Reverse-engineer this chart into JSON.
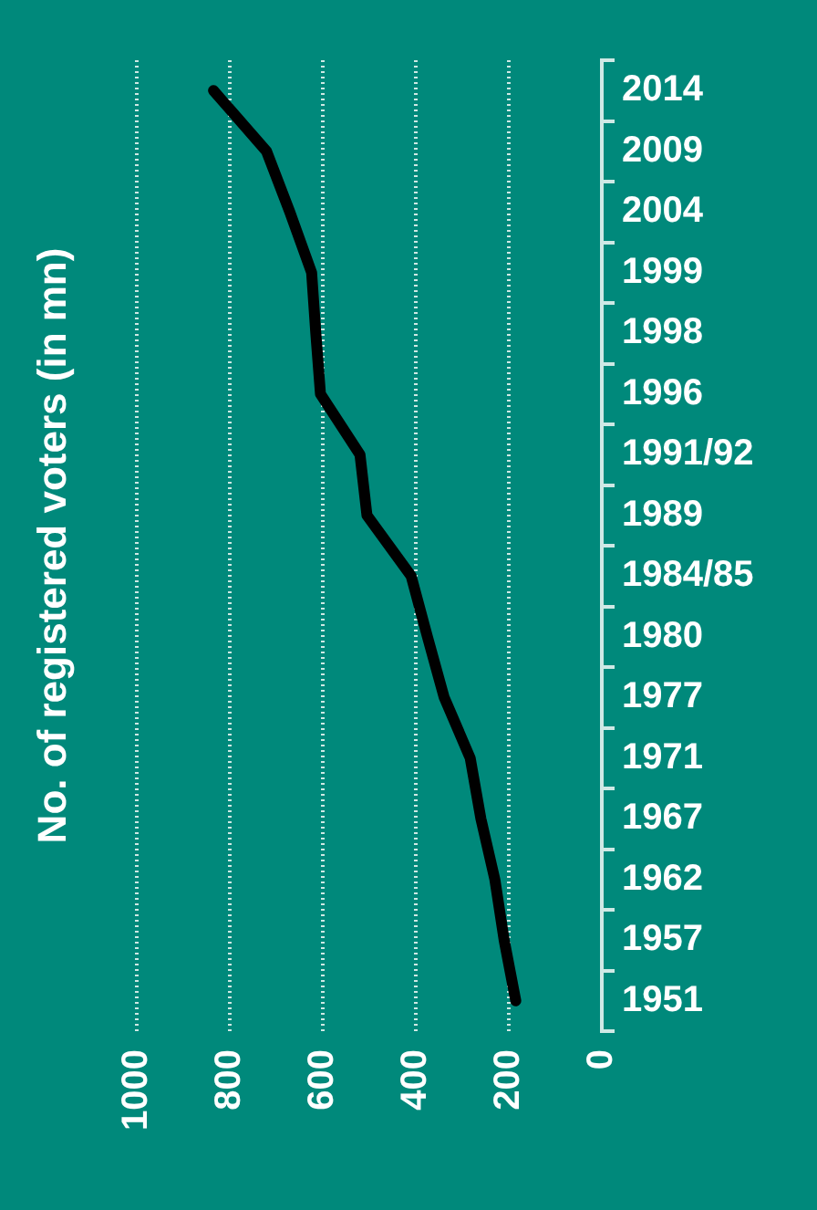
{
  "chart_data": {
    "type": "line",
    "orientation": "horizontal",
    "ylabel": "No. of registered voters (in mn)",
    "categories": [
      "2014",
      "2009",
      "2004",
      "1999",
      "1998",
      "1996",
      "1991/92",
      "1989",
      "1984/85",
      "1980",
      "1977",
      "1971",
      "1967",
      "1962",
      "1957",
      "1951"
    ],
    "series": [
      {
        "color": "#000000",
        "values": [
          835,
          721,
          671,
          624,
          615,
          605,
          520,
          505,
          410,
          375,
          339,
          283,
          260,
          230,
          210,
          185
        ]
      }
    ],
    "xlim": [
      1000,
      0
    ],
    "xticks": [
      0,
      200,
      400,
      600,
      800,
      1000
    ],
    "grid": "x",
    "legend": false,
    "marker": "none",
    "line_style": "solid"
  }
}
